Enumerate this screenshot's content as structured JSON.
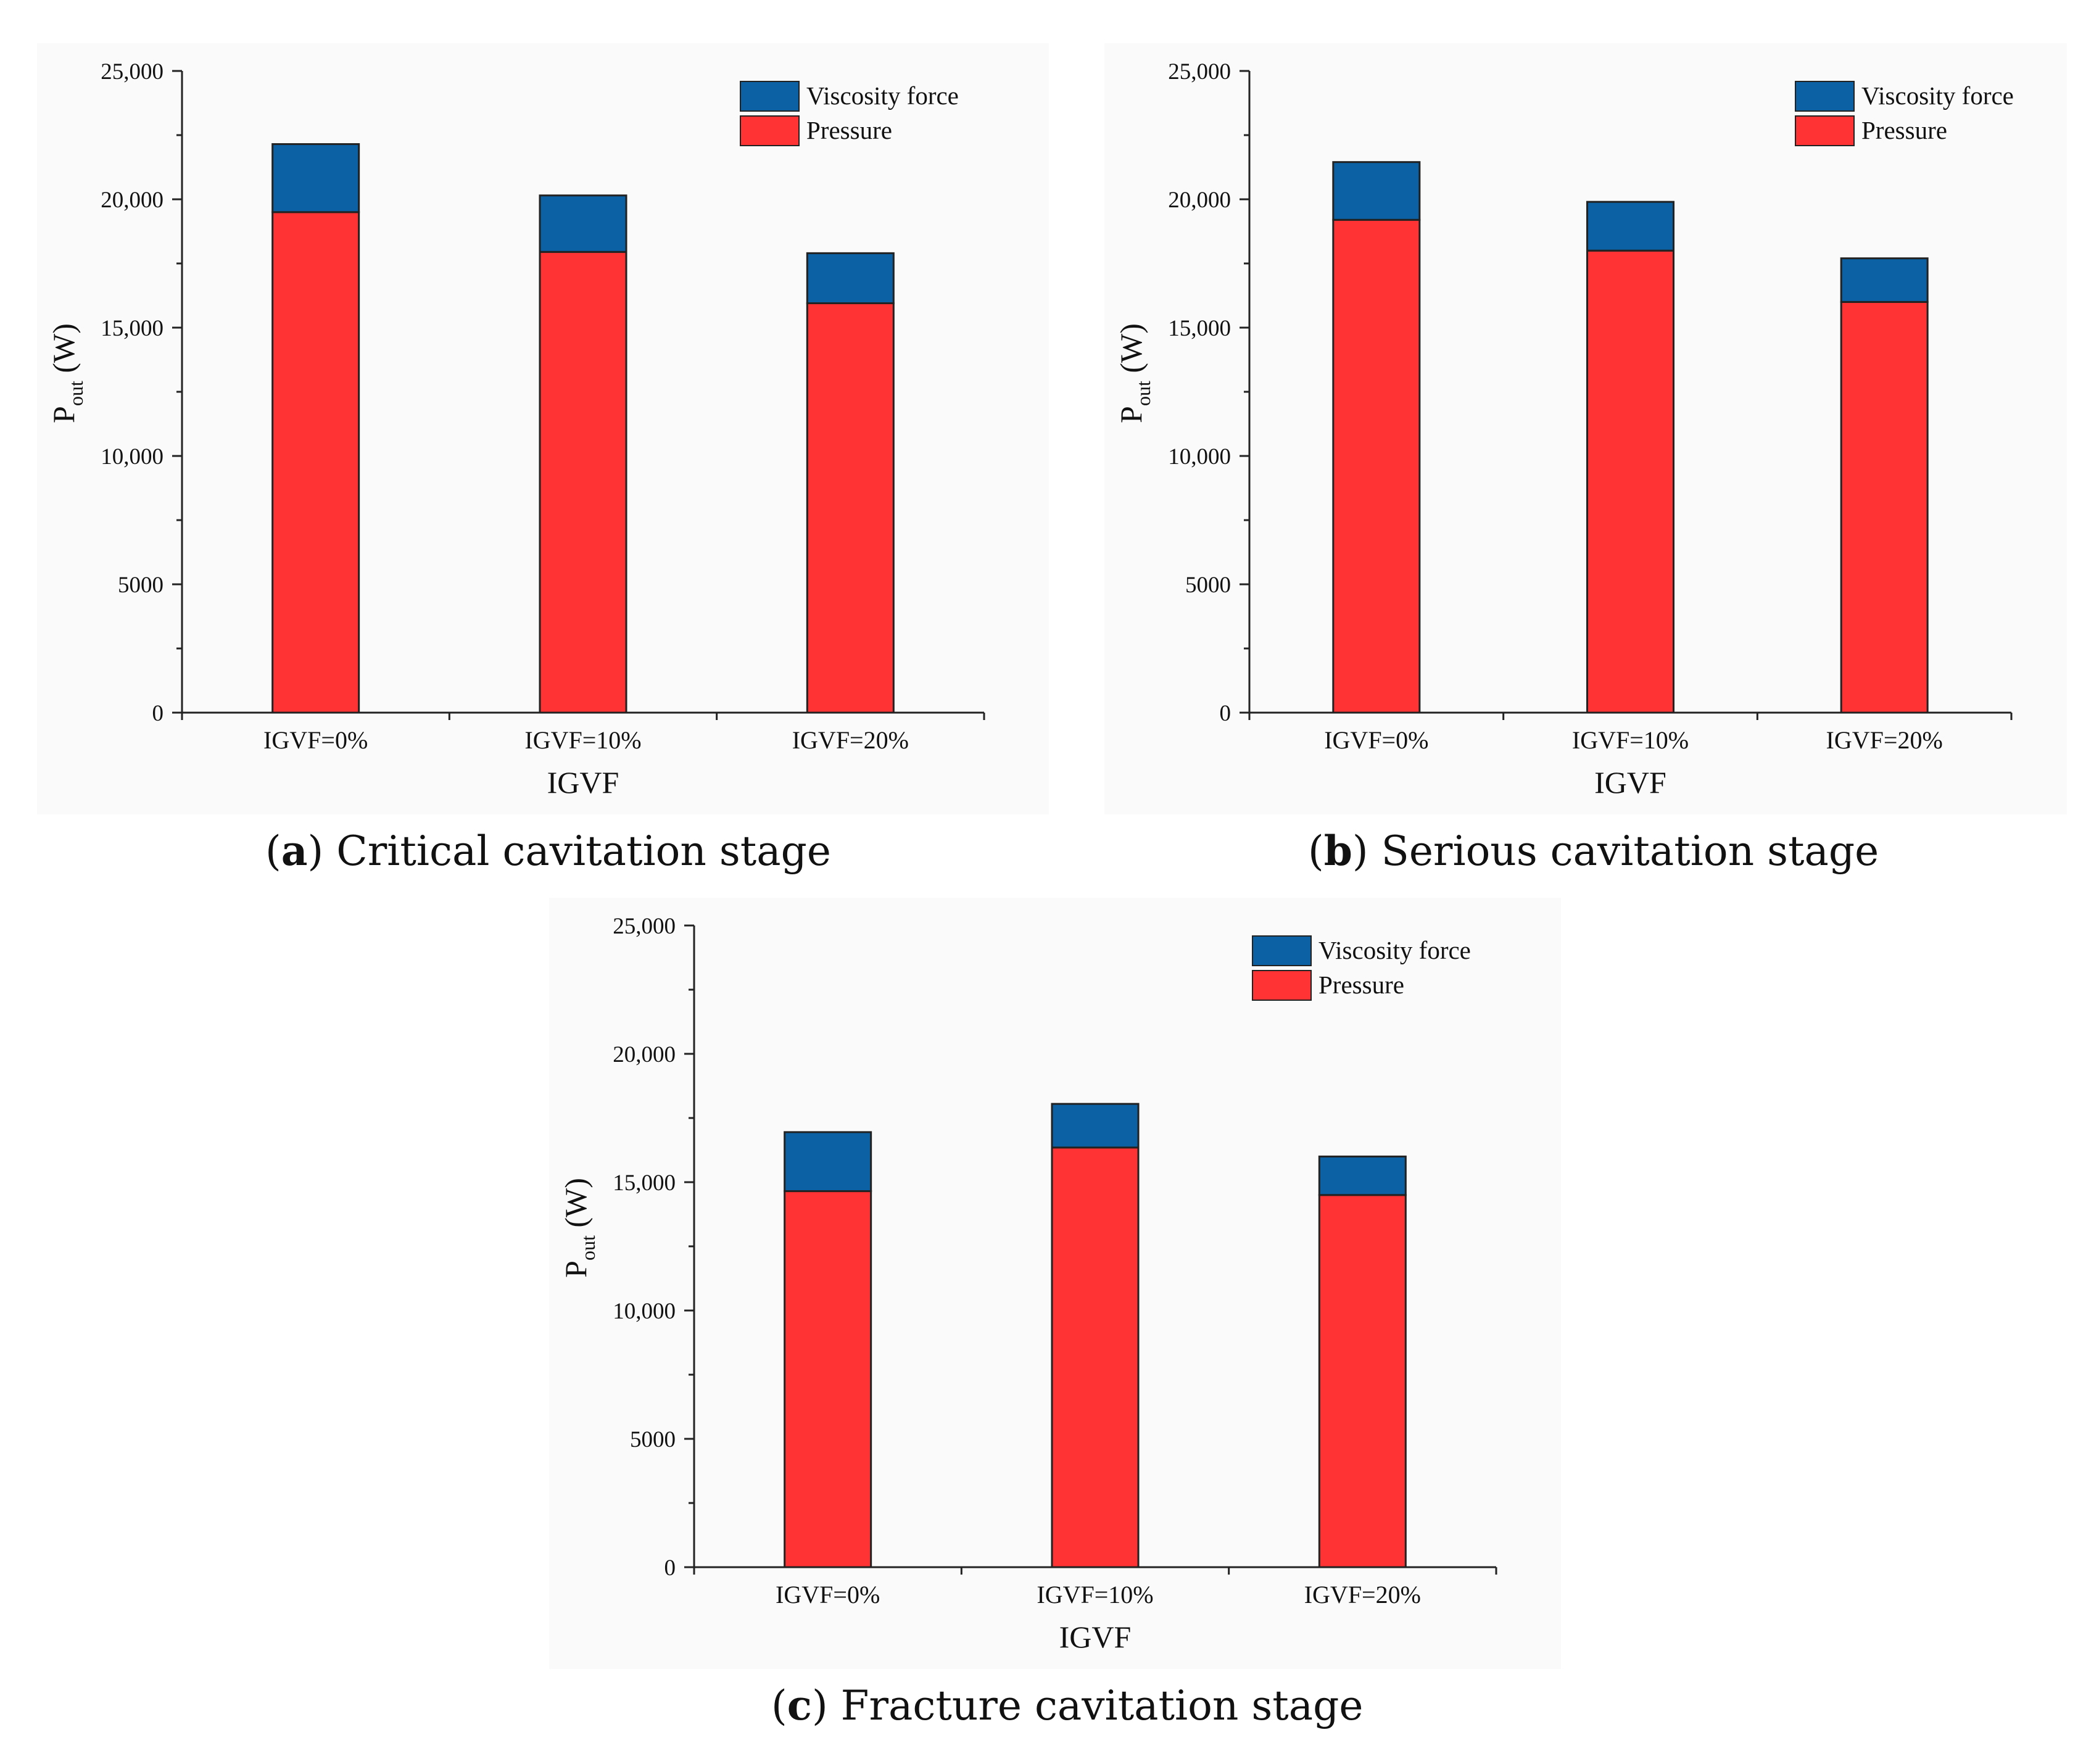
{
  "colors": {
    "viscosity": "#0b61a4",
    "pressure": "#ff3333",
    "axis": "#222222"
  },
  "chart_data": [
    {
      "type": "bar",
      "stacked": true,
      "panel": "a",
      "caption": "Critical cavitation stage",
      "categories": [
        "IGVF=0%",
        "IGVF=10%",
        "IGVF=20%"
      ],
      "series": [
        {
          "name": "Pressure",
          "values": [
            19500,
            17950,
            15950
          ]
        },
        {
          "name": "Viscosity force",
          "values": [
            2650,
            2200,
            1950
          ]
        }
      ],
      "ylabel_main": "P",
      "ylabel_sub": "out",
      "ylabel_unit": " (W)",
      "xlabel": "IGVF",
      "ylim": [
        0,
        25000
      ],
      "yticks": [
        0,
        5000,
        10000,
        15000,
        20000,
        25000
      ],
      "ytick_labels": [
        "0",
        "5000",
        "10,000",
        "15,000",
        "20,000",
        "25,000"
      ],
      "legend": [
        "Viscosity force",
        "Pressure"
      ],
      "legend_position": "top-right"
    },
    {
      "type": "bar",
      "stacked": true,
      "panel": "b",
      "caption": "Serious cavitation stage",
      "categories": [
        "IGVF=0%",
        "IGVF=10%",
        "IGVF=20%"
      ],
      "series": [
        {
          "name": "Pressure",
          "values": [
            19200,
            18000,
            16000
          ]
        },
        {
          "name": "Viscosity force",
          "values": [
            2250,
            1900,
            1700
          ]
        }
      ],
      "ylabel_main": "P",
      "ylabel_sub": "out",
      "ylabel_unit": " (W)",
      "xlabel": "IGVF",
      "ylim": [
        0,
        25000
      ],
      "yticks": [
        0,
        5000,
        10000,
        15000,
        20000,
        25000
      ],
      "ytick_labels": [
        "0",
        "5000",
        "10,000",
        "15,000",
        "20,000",
        "25,000"
      ],
      "legend": [
        "Viscosity force",
        "Pressure"
      ],
      "legend_position": "top-right"
    },
    {
      "type": "bar",
      "stacked": true,
      "panel": "c",
      "caption": "Fracture cavitation stage",
      "categories": [
        "IGVF=0%",
        "IGVF=10%",
        "IGVF=20%"
      ],
      "series": [
        {
          "name": "Pressure",
          "values": [
            14650,
            16350,
            14500
          ]
        },
        {
          "name": "Viscosity force",
          "values": [
            2300,
            1700,
            1500
          ]
        }
      ],
      "ylabel_main": "P",
      "ylabel_sub": "out",
      "ylabel_unit": " (W)",
      "xlabel": "IGVF",
      "ylim": [
        0,
        25000
      ],
      "yticks": [
        0,
        5000,
        10000,
        15000,
        20000,
        25000
      ],
      "ytick_labels": [
        "0",
        "5000",
        "10,000",
        "15,000",
        "20,000",
        "25,000"
      ],
      "legend": [
        "Viscosity force",
        "Pressure"
      ],
      "legend_position": "top-right"
    }
  ]
}
